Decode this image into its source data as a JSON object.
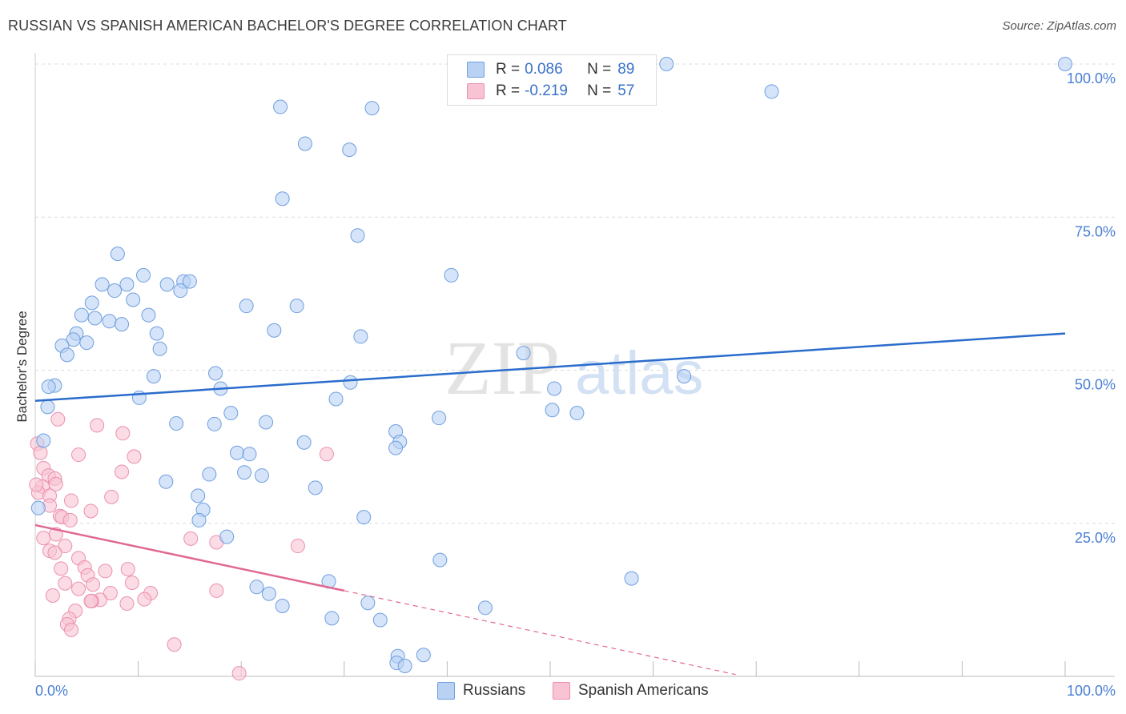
{
  "title": "RUSSIAN VS SPANISH AMERICAN BACHELOR'S DEGREE CORRELATION CHART",
  "source": "Source: ZipAtlas.com",
  "watermark": {
    "zip": "ZIP",
    "atlas": "atlas"
  },
  "legend_stats": [
    {
      "r_label": "R =",
      "r_value": "0.086",
      "n_label": "N =",
      "n_value": "89",
      "fill": "#b9d2f3",
      "stroke": "#6f9fe0"
    },
    {
      "r_label": "R =",
      "r_value": "-0.219",
      "n_label": "N =",
      "n_value": "57",
      "fill": "#f8c4d4",
      "stroke": "#ec8fae"
    }
  ],
  "bottom_legend": [
    {
      "label": "Russians",
      "fill": "#b9d2f3",
      "stroke": "#6f9fe0"
    },
    {
      "label": "Spanish Americans",
      "fill": "#f8c4d4",
      "stroke": "#ec8fae"
    }
  ],
  "chart_data": {
    "type": "scatter",
    "title": "RUSSIAN VS SPANISH AMERICAN BACHELOR'S DEGREE CORRELATION CHART",
    "xlabel": "",
    "ylabel": "Bachelor's Degree",
    "xlim": [
      0,
      100
    ],
    "ylim": [
      0,
      100
    ],
    "x_tick_labels": [
      "0.0%",
      "100.0%"
    ],
    "y_ticks": [
      25,
      50,
      75,
      100
    ],
    "y_tick_labels": [
      "25.0%",
      "50.0%",
      "75.0%",
      "100.0%"
    ],
    "grid": true,
    "series": [
      {
        "name": "Russians",
        "color": "#6f9fe0",
        "fill": "#b9d2f3",
        "trend_color": "#2a6ccc",
        "trend": {
          "x": [
            0,
            100
          ],
          "y": [
            45.0,
            56.0
          ],
          "dash_from": null
        },
        "points": [
          [
            59.5,
            100
          ],
          [
            61.3,
            100
          ],
          [
            100,
            100
          ],
          [
            71.5,
            95.5
          ],
          [
            23.8,
            93
          ],
          [
            32.7,
            92.8
          ],
          [
            26.2,
            87
          ],
          [
            30.5,
            86
          ],
          [
            24,
            78
          ],
          [
            31.3,
            72
          ],
          [
            8,
            69
          ],
          [
            10.5,
            65.5
          ],
          [
            40.4,
            65.5
          ],
          [
            6.5,
            64
          ],
          [
            8.9,
            64
          ],
          [
            12.8,
            64
          ],
          [
            14.4,
            64.5
          ],
          [
            15,
            64.5
          ],
          [
            7.7,
            63
          ],
          [
            14.1,
            63
          ],
          [
            9.5,
            61.5
          ],
          [
            5.5,
            61
          ],
          [
            20.5,
            60.5
          ],
          [
            25.4,
            60.5
          ],
          [
            4.5,
            59
          ],
          [
            11,
            59
          ],
          [
            5.8,
            58.5
          ],
          [
            7.2,
            58
          ],
          [
            8.4,
            57.5
          ],
          [
            23.2,
            56.5
          ],
          [
            4,
            56
          ],
          [
            11.8,
            56
          ],
          [
            31.6,
            55.5
          ],
          [
            3.7,
            55
          ],
          [
            5,
            54.5
          ],
          [
            2.6,
            54
          ],
          [
            12.1,
            53.5
          ],
          [
            3.1,
            52.5
          ],
          [
            47.4,
            52.8
          ],
          [
            17.5,
            49.5
          ],
          [
            11.5,
            49
          ],
          [
            63,
            49
          ],
          [
            30.6,
            48
          ],
          [
            1.9,
            47.5
          ],
          [
            1.3,
            47.3
          ],
          [
            18,
            47
          ],
          [
            50.4,
            47
          ],
          [
            10.1,
            45.5
          ],
          [
            29.2,
            45.3
          ],
          [
            1.2,
            44
          ],
          [
            50.2,
            43.5
          ],
          [
            52.6,
            43
          ],
          [
            19,
            43
          ],
          [
            39.2,
            42.2
          ],
          [
            22.4,
            41.5
          ],
          [
            13.7,
            41.3
          ],
          [
            17.4,
            41.2
          ],
          [
            35,
            40
          ],
          [
            0.8,
            38.5
          ],
          [
            26.1,
            38.2
          ],
          [
            35.4,
            38.3
          ],
          [
            35,
            37.3
          ],
          [
            19.6,
            36.5
          ],
          [
            20.8,
            36.3
          ],
          [
            16.9,
            33
          ],
          [
            22,
            32.8
          ],
          [
            20.3,
            33.3
          ],
          [
            12.7,
            31.8
          ],
          [
            27.2,
            30.8
          ],
          [
            15.8,
            29.5
          ],
          [
            0.3,
            27.5
          ],
          [
            16.3,
            27.2
          ],
          [
            31.9,
            26
          ],
          [
            15.9,
            25.5
          ],
          [
            18.6,
            22.8
          ],
          [
            39.3,
            19
          ],
          [
            57.9,
            16
          ],
          [
            28.5,
            15.5
          ],
          [
            21.5,
            14.6
          ],
          [
            22.7,
            13.5
          ],
          [
            32.3,
            12
          ],
          [
            24,
            11.5
          ],
          [
            43.7,
            11.2
          ],
          [
            28.8,
            9.5
          ],
          [
            33.5,
            9.2
          ],
          [
            37.7,
            3.5
          ],
          [
            35.2,
            3.3
          ],
          [
            35.1,
            2.2
          ],
          [
            35.9,
            1.7
          ]
        ]
      },
      {
        "name": "Spanish Americans",
        "color": "#ec8fae",
        "fill": "#f8c4d4",
        "trend_color": "#e06893",
        "trend": {
          "x": [
            0,
            30,
            68
          ],
          "y": [
            24.7,
            14.0,
            0.3
          ],
          "dash_from": 30
        },
        "points": [
          [
            2.2,
            42
          ],
          [
            6,
            41
          ],
          [
            8.5,
            39.7
          ],
          [
            0.2,
            38
          ],
          [
            0.5,
            36.5
          ],
          [
            4.2,
            36.2
          ],
          [
            9.6,
            35.9
          ],
          [
            28.3,
            36.3
          ],
          [
            0.8,
            34
          ],
          [
            8.4,
            33.4
          ],
          [
            1.3,
            32.8
          ],
          [
            1.9,
            32.3
          ],
          [
            2,
            31.4
          ],
          [
            0.7,
            31
          ],
          [
            0.3,
            30
          ],
          [
            1.4,
            29.5
          ],
          [
            7.4,
            29.3
          ],
          [
            3.5,
            28.7
          ],
          [
            1.4,
            27.9
          ],
          [
            5.4,
            27
          ],
          [
            2.4,
            26.2
          ],
          [
            2.6,
            26
          ],
          [
            3.4,
            25.5
          ],
          [
            15.1,
            22.5
          ],
          [
            2,
            23.2
          ],
          [
            0.8,
            22.6
          ],
          [
            17.6,
            21.9
          ],
          [
            25.5,
            21.3
          ],
          [
            2.9,
            21.3
          ],
          [
            1.4,
            20.5
          ],
          [
            1.9,
            20.2
          ],
          [
            4.2,
            19.3
          ],
          [
            4.8,
            17.8
          ],
          [
            9,
            17.5
          ],
          [
            2.5,
            17.6
          ],
          [
            6.8,
            17.2
          ],
          [
            5.1,
            16.5
          ],
          [
            2.9,
            15.2
          ],
          [
            9.4,
            15.3
          ],
          [
            5.6,
            15
          ],
          [
            17.6,
            14
          ],
          [
            4.2,
            14.3
          ],
          [
            11.2,
            13.6
          ],
          [
            7.3,
            13.6
          ],
          [
            1.7,
            13.2
          ],
          [
            10.6,
            12.6
          ],
          [
            6.3,
            12.5
          ],
          [
            5.5,
            12.3
          ],
          [
            5.4,
            12.3
          ],
          [
            8.9,
            11.9
          ],
          [
            3.9,
            10.7
          ],
          [
            3.3,
            9.4
          ],
          [
            3.1,
            8.5
          ],
          [
            3.5,
            7.6
          ],
          [
            13.5,
            5.2
          ],
          [
            19.8,
            0.5
          ],
          [
            0.1,
            31.3
          ]
        ]
      }
    ]
  }
}
